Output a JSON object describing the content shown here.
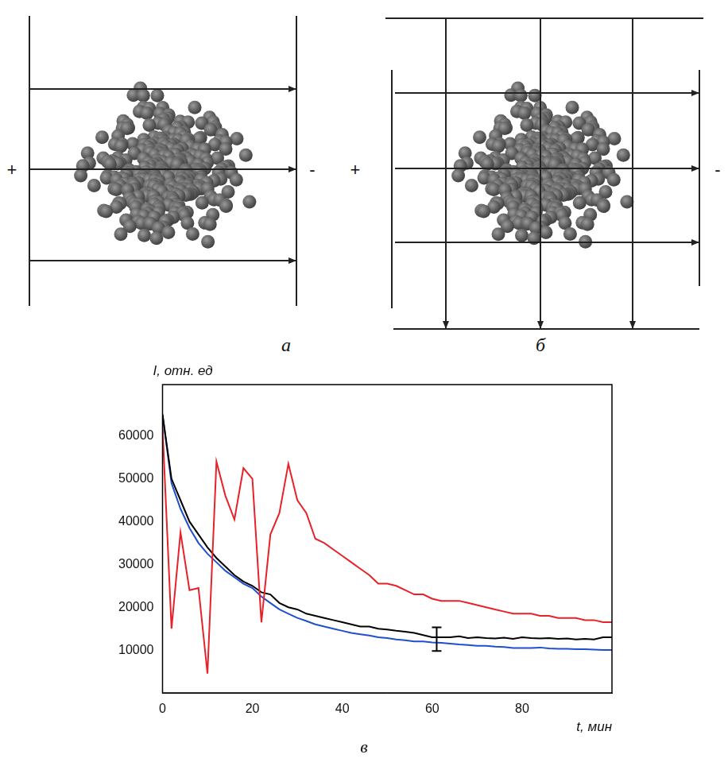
{
  "figure": {
    "panels": [
      {
        "label": "а",
        "left_sign": "+",
        "right_sign": "-"
      },
      {
        "label": "б",
        "left_sign": "+",
        "right_sign": "-"
      }
    ]
  },
  "chart_data": {
    "type": "line",
    "title": "в",
    "x_label": "t, мин",
    "y_label": "I, отн. ед",
    "xlim": [
      0,
      100
    ],
    "xticks": [
      0,
      20,
      40,
      60,
      80
    ],
    "ylim": [
      0,
      72000
    ],
    "yticks": [
      10000,
      20000,
      30000,
      40000,
      50000,
      60000
    ],
    "grid": false,
    "x": [
      0,
      2,
      4,
      6,
      8,
      10,
      12,
      14,
      16,
      18,
      20,
      22,
      24,
      26,
      28,
      30,
      32,
      34,
      36,
      38,
      40,
      42,
      44,
      46,
      48,
      50,
      52,
      54,
      56,
      58,
      60,
      62,
      64,
      66,
      68,
      70,
      72,
      74,
      76,
      78,
      80,
      82,
      84,
      86,
      88,
      90,
      92,
      94,
      96,
      98,
      100
    ],
    "series": [
      {
        "color": "#e8212a",
        "values": [
          62000,
          15000,
          37500,
          24000,
          24500,
          4500,
          54000,
          46000,
          40500,
          52500,
          50000,
          16500,
          37000,
          42000,
          53500,
          45000,
          42000,
          36000,
          35000,
          33500,
          32000,
          30500,
          29000,
          27500,
          25500,
          25500,
          25000,
          24000,
          23000,
          23000,
          22000,
          21500,
          21500,
          21500,
          21000,
          20500,
          20000,
          19500,
          19000,
          18500,
          18500,
          18500,
          18000,
          18000,
          17500,
          17500,
          17500,
          17000,
          17000,
          16500,
          16500
        ]
      },
      {
        "color": "#000000",
        "values": [
          65000,
          50000,
          45000,
          40000,
          37000,
          34000,
          31500,
          29500,
          27500,
          26000,
          25000,
          23500,
          23000,
          21000,
          20000,
          19500,
          18500,
          18000,
          17500,
          17000,
          16500,
          16000,
          15500,
          15500,
          15000,
          14800,
          14500,
          14300,
          14000,
          13500,
          13000,
          13000,
          13000,
          13200,
          12800,
          13000,
          12800,
          12700,
          12900,
          12600,
          13000,
          12800,
          12700,
          12800,
          12600,
          12700,
          12500,
          12600,
          12500,
          13000,
          13000
        ],
        "error_bars": [
          {
            "x": 61,
            "low": 9800,
            "high": 15300
          }
        ]
      },
      {
        "color": "#1f4fd0",
        "values": [
          65000,
          49000,
          43000,
          38500,
          35000,
          32500,
          30500,
          28500,
          27000,
          25500,
          24500,
          22500,
          21000,
          19500,
          18500,
          17500,
          16800,
          16000,
          15500,
          15000,
          14500,
          14000,
          13700,
          13400,
          13000,
          12800,
          12500,
          12300,
          12000,
          12000,
          11800,
          11700,
          11500,
          11300,
          11200,
          11000,
          11000,
          10800,
          10700,
          10500,
          10500,
          10500,
          10600,
          10400,
          10300,
          10300,
          10200,
          10200,
          10100,
          10000,
          10000
        ]
      }
    ]
  }
}
